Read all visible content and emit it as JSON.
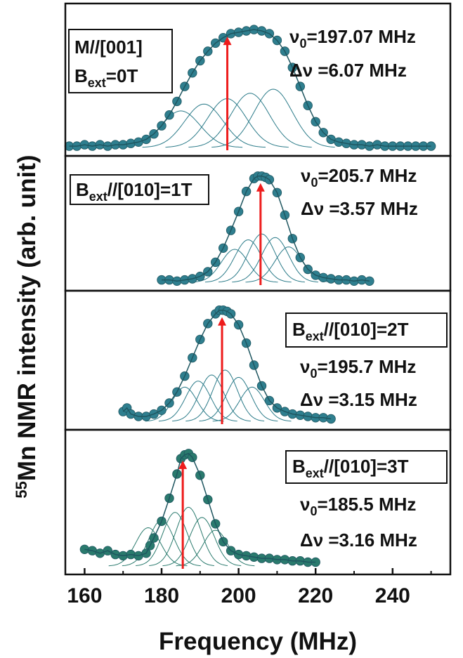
{
  "chart_data": {
    "type": "line",
    "xlabel": "Frequency (MHz)",
    "ylabel_sup": "55",
    "ylabel_rest": "Mn NMR intensity (arb. unit)",
    "xlim": [
      155,
      255
    ],
    "xticks": [
      160,
      180,
      200,
      220,
      240
    ],
    "panels": [
      {
        "color": "#2f7f8f",
        "fit_color": "#2b7b89",
        "arrow_x": 197.07,
        "label_lines": [
          {
            "parts": [
              {
                "t": "M//[001]"
              }
            ]
          },
          {
            "parts": [
              {
                "t": "B"
              },
              {
                "t": "ext",
                "sub": true
              },
              {
                "t": "=0T"
              }
            ]
          }
        ],
        "v0_label": "=197.07 MHz",
        "dv_label": "=6.07 MHz",
        "points": [
          [
            156,
            0.01
          ],
          [
            158,
            0.01
          ],
          [
            160,
            0.02
          ],
          [
            162,
            0.01
          ],
          [
            164,
            0.02
          ],
          [
            166,
            0.01
          ],
          [
            168,
            0.02
          ],
          [
            170,
            0.02
          ],
          [
            172,
            0.03
          ],
          [
            174,
            0.04
          ],
          [
            176,
            0.06
          ],
          [
            178,
            0.1
          ],
          [
            180,
            0.16
          ],
          [
            182,
            0.24
          ],
          [
            184,
            0.34
          ],
          [
            186,
            0.45
          ],
          [
            188,
            0.55
          ],
          [
            190,
            0.64
          ],
          [
            192,
            0.71
          ],
          [
            194,
            0.77
          ],
          [
            196,
            0.81
          ],
          [
            198,
            0.84
          ],
          [
            200,
            0.85
          ],
          [
            202,
            0.86
          ],
          [
            204,
            0.87
          ],
          [
            206,
            0.86
          ],
          [
            208,
            0.84
          ],
          [
            210,
            0.79
          ],
          [
            212,
            0.71
          ],
          [
            214,
            0.59
          ],
          [
            216,
            0.45
          ],
          [
            218,
            0.31
          ],
          [
            220,
            0.19
          ],
          [
            222,
            0.11
          ],
          [
            224,
            0.06
          ],
          [
            226,
            0.04
          ],
          [
            228,
            0.03
          ],
          [
            230,
            0.02
          ],
          [
            232,
            0.02
          ],
          [
            234,
            0.01
          ],
          [
            236,
            0.02
          ],
          [
            238,
            0.01
          ],
          [
            240,
            0.01
          ],
          [
            242,
            0.01
          ],
          [
            244,
            0.01
          ],
          [
            246,
            0.01
          ],
          [
            248,
            0.01
          ],
          [
            250,
            0.01
          ]
        ],
        "components": [
          [
            185,
            5,
            0.27
          ],
          [
            191,
            5,
            0.32
          ],
          [
            197,
            5,
            0.36
          ],
          [
            203,
            5,
            0.4
          ],
          [
            209,
            5,
            0.43
          ]
        ]
      },
      {
        "color": "#2f7f8f",
        "fit_color": "#2b7b89",
        "arrow_x": 205.7,
        "label_lines": [
          {
            "parts": [
              {
                "t": "B"
              },
              {
                "t": "ext",
                "sub": true
              },
              {
                "t": "//[010]=1T"
              }
            ]
          }
        ],
        "v0_label": "=205.7 MHz",
        "dv_label": "=3.57 MHz",
        "points": [
          [
            180,
            0.02
          ],
          [
            182,
            0.02
          ],
          [
            184,
            0.01
          ],
          [
            186,
            0.02
          ],
          [
            188,
            0.03
          ],
          [
            190,
            0.05
          ],
          [
            192,
            0.09
          ],
          [
            194,
            0.17
          ],
          [
            196,
            0.29
          ],
          [
            198,
            0.44
          ],
          [
            200,
            0.6
          ],
          [
            202,
            0.77
          ],
          [
            204,
            0.88
          ],
          [
            205,
            0.9
          ],
          [
            206,
            0.9
          ],
          [
            207,
            0.89
          ],
          [
            208,
            0.87
          ],
          [
            210,
            0.76
          ],
          [
            212,
            0.57
          ],
          [
            214,
            0.37
          ],
          [
            216,
            0.21
          ],
          [
            218,
            0.11
          ],
          [
            220,
            0.06
          ],
          [
            222,
            0.04
          ],
          [
            224,
            0.03
          ],
          [
            226,
            0.02
          ],
          [
            228,
            0.02
          ],
          [
            230,
            0.01
          ],
          [
            232,
            0.02
          ],
          [
            234,
            0.01
          ]
        ],
        "components": [
          [
            199,
            3.5,
            0.28
          ],
          [
            202.5,
            3.5,
            0.36
          ],
          [
            206,
            3.5,
            0.41
          ],
          [
            209.5,
            3.5,
            0.38
          ],
          [
            213,
            3.5,
            0.3
          ]
        ]
      },
      {
        "color": "#2f7f8f",
        "fit_color": "#2b7b89",
        "arrow_x": 195.7,
        "label_lines": [
          {
            "parts": [
              {
                "t": "B"
              },
              {
                "t": "ext",
                "sub": true
              },
              {
                "t": "//[010]=2T"
              }
            ]
          }
        ],
        "v0_label": "=195.7 MHz",
        "dv_label": "=3.15 MHz",
        "points": [
          [
            170,
            0.08
          ],
          [
            171,
            0.11
          ],
          [
            172,
            0.06
          ],
          [
            174,
            0.04
          ],
          [
            176,
            0.04
          ],
          [
            178,
            0.06
          ],
          [
            180,
            0.09
          ],
          [
            182,
            0.15
          ],
          [
            184,
            0.24
          ],
          [
            186,
            0.37
          ],
          [
            188,
            0.52
          ],
          [
            190,
            0.67
          ],
          [
            192,
            0.8
          ],
          [
            194,
            0.88
          ],
          [
            195,
            0.91
          ],
          [
            196,
            0.91
          ],
          [
            197,
            0.9
          ],
          [
            198,
            0.88
          ],
          [
            200,
            0.79
          ],
          [
            202,
            0.64
          ],
          [
            204,
            0.46
          ],
          [
            206,
            0.29
          ],
          [
            208,
            0.17
          ],
          [
            210,
            0.11
          ],
          [
            212,
            0.08
          ],
          [
            214,
            0.06
          ],
          [
            216,
            0.05
          ],
          [
            218,
            0.04
          ],
          [
            220,
            0.03
          ],
          [
            222,
            0.03
          ],
          [
            224,
            0.02
          ]
        ],
        "components": [
          [
            186,
            3.2,
            0.28
          ],
          [
            189.5,
            3.2,
            0.33
          ],
          [
            193,
            3.2,
            0.38
          ],
          [
            196.5,
            3.2,
            0.42
          ],
          [
            200,
            3.2,
            0.36
          ],
          [
            203.5,
            3.2,
            0.28
          ]
        ]
      },
      {
        "color": "#2a7a6d",
        "fit_color": "#2a7a6d",
        "arrow_x": 185.5,
        "label_lines": [
          {
            "parts": [
              {
                "t": "B"
              },
              {
                "t": "ext",
                "sub": true
              },
              {
                "t": "//[010]=3T"
              }
            ]
          }
        ],
        "v0_label": "=185.5 MHz",
        "dv_label": "=3.16 MHz",
        "points": [
          [
            160,
            0.13
          ],
          [
            162,
            0.12
          ],
          [
            164,
            0.1
          ],
          [
            166,
            0.12
          ],
          [
            168,
            0.09
          ],
          [
            170,
            0.08
          ],
          [
            172,
            0.09
          ],
          [
            174,
            0.08
          ],
          [
            176,
            0.1
          ],
          [
            177,
            0.16
          ],
          [
            178,
            0.22
          ],
          [
            180,
            0.35
          ],
          [
            182,
            0.53
          ],
          [
            184,
            0.72
          ],
          [
            185,
            0.84
          ],
          [
            186,
            0.87
          ],
          [
            187,
            0.88
          ],
          [
            188,
            0.85
          ],
          [
            190,
            0.71
          ],
          [
            192,
            0.52
          ],
          [
            194,
            0.33
          ],
          [
            196,
            0.19
          ],
          [
            198,
            0.12
          ],
          [
            200,
            0.09
          ],
          [
            202,
            0.08
          ],
          [
            204,
            0.07
          ],
          [
            206,
            0.06
          ],
          [
            208,
            0.06
          ],
          [
            210,
            0.05
          ],
          [
            212,
            0.05
          ],
          [
            214,
            0.04
          ],
          [
            216,
            0.04
          ],
          [
            218,
            0.03
          ],
          [
            220,
            0.03
          ]
        ],
        "components": [
          [
            176.5,
            3.2,
            0.3
          ],
          [
            180,
            3.2,
            0.36
          ],
          [
            183.5,
            3.2,
            0.42
          ],
          [
            187,
            3.2,
            0.46
          ],
          [
            190.5,
            3.2,
            0.38
          ],
          [
            194,
            3.2,
            0.28
          ]
        ]
      }
    ],
    "arrow_color": "#ee1c1c"
  }
}
